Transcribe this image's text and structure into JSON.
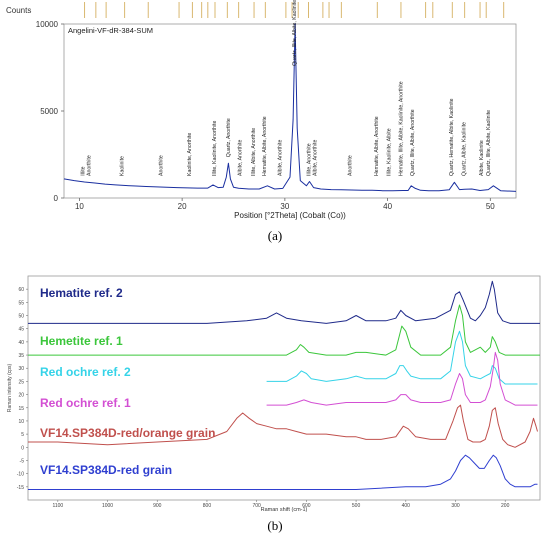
{
  "chart_data": [
    {
      "type": "line",
      "panel_label": "(a)",
      "title": "",
      "xlabel": "Position [°2Theta] (Cobalt (Co))",
      "ylabel": "Counts",
      "xlim": [
        8.5,
        52.5
      ],
      "ylim": [
        0,
        10000
      ],
      "xticks": [
        10,
        20,
        30,
        40,
        50
      ],
      "yticks": [
        0,
        5000,
        10000
      ],
      "series": [
        {
          "name": "Angelini-VF-dR-384-SUM",
          "color": "#1a2fa0",
          "x": [
            8.5,
            9.5,
            10.5,
            11.5,
            12.5,
            13.5,
            14.5,
            15.5,
            16.5,
            17.5,
            18.5,
            19.5,
            20.5,
            21.5,
            22.5,
            23.0,
            23.5,
            24.0,
            24.3,
            24.5,
            24.7,
            25.0,
            25.5,
            26.5,
            27.5,
            28.3,
            29.0,
            29.8,
            30.5,
            30.8,
            31.0,
            31.2,
            31.5,
            31.8,
            32.1,
            32.4,
            32.8,
            33.5,
            34.5,
            35.5,
            36.5,
            37.5,
            38.5,
            39.5,
            40.5,
            41.5,
            42.0,
            42.3,
            42.7,
            43.2,
            44.0,
            45.0,
            46.0,
            46.5,
            47.0,
            47.5,
            48.2,
            49.0,
            49.8,
            50.3,
            51.0,
            52.5
          ],
          "y": [
            1100,
            1000,
            920,
            860,
            800,
            750,
            720,
            690,
            660,
            640,
            620,
            600,
            580,
            570,
            570,
            750,
            600,
            620,
            1200,
            2000,
            1100,
            620,
            560,
            520,
            520,
            700,
            520,
            550,
            1200,
            4500,
            10000,
            4000,
            1000,
            850,
            700,
            950,
            600,
            520,
            480,
            470,
            460,
            450,
            440,
            420,
            420,
            430,
            430,
            700,
            550,
            440,
            420,
            420,
            470,
            900,
            480,
            500,
            520,
            430,
            480,
            700,
            420,
            380
          ]
        }
      ],
      "phase_ticks": [
        10.5,
        11.6,
        12.6,
        14.4,
        16.7,
        19.7,
        21.0,
        21.9,
        22.5,
        23.2,
        24.4,
        25.5,
        27.0,
        28.1,
        30.1,
        30.7,
        31.3,
        32.3,
        33.7,
        34.3,
        35.5,
        39.0,
        41.3,
        43.7,
        44.4,
        46.3,
        47.5,
        49.0,
        49.6,
        51.3
      ],
      "peak_labels": [
        {
          "x": 10.3,
          "text": "Illite"
        },
        {
          "x": 10.9,
          "text": "Anorthite"
        },
        {
          "x": 14.1,
          "text": "Kaolinite"
        },
        {
          "x": 17.9,
          "text": "Anorthite"
        },
        {
          "x": 20.7,
          "text": "Kaolinite, Anorthite"
        },
        {
          "x": 23.1,
          "text": "Illite, Kaolinite, Anorthite"
        },
        {
          "x": 24.5,
          "text": "Quartz, Anorthite"
        },
        {
          "x": 25.6,
          "text": "Albite, Anorthite"
        },
        {
          "x": 26.9,
          "text": "Illite, Albite, Anorthite"
        },
        {
          "x": 28.0,
          "text": "Hematite, Albite, Anorthite"
        },
        {
          "x": 29.5,
          "text": "Albite, Anorthite"
        },
        {
          "x": 30.9,
          "text": "Quartz, Illite, Albite, Kaolinite"
        },
        {
          "x": 32.3,
          "text": "Illite, Anorthite"
        },
        {
          "x": 32.9,
          "text": "Albite, Anorthite"
        },
        {
          "x": 36.3,
          "text": "Anorthite"
        },
        {
          "x": 38.9,
          "text": "Hematite, Albite, Anorthite"
        },
        {
          "x": 40.1,
          "text": "Illite, Kaolinite, Albite"
        },
        {
          "x": 41.3,
          "text": "Hematite, Illite, Albite, Kaolinite, Anorthite"
        },
        {
          "x": 42.4,
          "text": "Quartz, Illite, Albite, Anorthite"
        },
        {
          "x": 46.2,
          "text": "Quartz, Hematite, Albite, Kaolinite"
        },
        {
          "x": 47.4,
          "text": "Quartz, Albite, Kaolinite"
        },
        {
          "x": 49.1,
          "text": "Albite, Kaolinite"
        },
        {
          "x": 49.8,
          "text": "Quartz, Illite, Albite, Kaolinite"
        }
      ]
    },
    {
      "type": "line",
      "panel_label": "(b)",
      "title": "",
      "xlabel": "Raman shift (cm-1)",
      "ylabel": "Raman intensity (cps)",
      "xlim": [
        1160,
        130
      ],
      "ylim": [
        -20,
        65
      ],
      "xticks": [
        1100,
        1000,
        900,
        800,
        700,
        600,
        500,
        400,
        300,
        200
      ],
      "yticks": [
        -15,
        -10,
        -5,
        0,
        5,
        10,
        15,
        20,
        25,
        30,
        35,
        40,
        45,
        50,
        55,
        60
      ],
      "series": [
        {
          "name": "Hematite ref. 2",
          "color": "#1f2a8a",
          "x": [
            1160,
            1100,
            1000,
            900,
            800,
            720,
            680,
            660,
            640,
            610,
            560,
            520,
            500,
            480,
            440,
            420,
            410,
            400,
            380,
            340,
            310,
            300,
            292,
            285,
            270,
            260,
            250,
            240,
            232,
            226,
            222,
            215,
            205,
            190,
            170,
            150,
            130
          ],
          "y": [
            47,
            47,
            47,
            47,
            47,
            48,
            49,
            51,
            49,
            48,
            47,
            48,
            50,
            48,
            48,
            49,
            52,
            50,
            48,
            49,
            52,
            58,
            59,
            56,
            49,
            48,
            50,
            53,
            58,
            63,
            60,
            51,
            48,
            47,
            47,
            47,
            47
          ]
        },
        {
          "name": "Hemetite ref. 1",
          "color": "#3bc63b",
          "x": [
            1160,
            1000,
            800,
            700,
            640,
            620,
            612,
            605,
            595,
            560,
            520,
            500,
            480,
            440,
            420,
            412,
            408,
            400,
            390,
            370,
            330,
            310,
            300,
            292,
            286,
            280,
            270,
            250,
            240,
            230,
            226,
            220,
            212,
            200,
            180,
            150,
            130
          ],
          "y": [
            35,
            35,
            35,
            35,
            35,
            37,
            39,
            38,
            36,
            35,
            35,
            36,
            36,
            35,
            37,
            43,
            46,
            44,
            38,
            35,
            35,
            38,
            48,
            54,
            50,
            40,
            36,
            38,
            36,
            38,
            42,
            40,
            36,
            35,
            35,
            35,
            35
          ]
        },
        {
          "name": "Red ochre ref. 2",
          "color": "#35d3e8",
          "x": [
            680,
            640,
            620,
            610,
            600,
            590,
            560,
            520,
            500,
            480,
            440,
            420,
            412,
            405,
            398,
            390,
            370,
            330,
            310,
            300,
            292,
            286,
            280,
            270,
            250,
            240,
            230,
            226,
            220,
            212,
            200,
            180,
            150,
            135
          ],
          "y": [
            25,
            25,
            27,
            29,
            28,
            26,
            25,
            26,
            27,
            26,
            26,
            28,
            31,
            31,
            29,
            27,
            26,
            26,
            29,
            40,
            44,
            40,
            31,
            27,
            26,
            27,
            28,
            31,
            30,
            26,
            24,
            24,
            24,
            24
          ]
        },
        {
          "name": "Red ochre ref. 1",
          "color": "#d34fd3",
          "x": [
            680,
            640,
            620,
            605,
            590,
            560,
            520,
            500,
            480,
            440,
            420,
            410,
            400,
            390,
            370,
            330,
            310,
            300,
            292,
            286,
            280,
            270,
            250,
            240,
            230,
            224,
            220,
            215,
            210,
            200,
            180,
            150,
            135
          ],
          "y": [
            16,
            16,
            17,
            18,
            17,
            16,
            17,
            17,
            17,
            17,
            18,
            20,
            20,
            18,
            17,
            17,
            18,
            24,
            28,
            26,
            20,
            17,
            17,
            18,
            23,
            30,
            36,
            33,
            24,
            18,
            16,
            16,
            16
          ]
        },
        {
          "name": "VF14.SP384D-red/orange grain",
          "color": "#c0504d",
          "x": [
            1160,
            1100,
            1000,
            900,
            800,
            760,
            740,
            728,
            715,
            700,
            680,
            660,
            640,
            620,
            600,
            580,
            560,
            520,
            500,
            480,
            450,
            420,
            405,
            395,
            380,
            350,
            320,
            305,
            296,
            290,
            284,
            275,
            265,
            250,
            240,
            232,
            226,
            220,
            214,
            205,
            195,
            180,
            160,
            150,
            143,
            138,
            135
          ],
          "y": [
            2,
            2,
            1,
            2,
            3,
            6,
            11,
            13,
            11,
            9,
            8,
            7,
            7,
            6,
            5,
            5,
            5,
            4,
            4,
            3,
            3,
            4,
            8,
            7,
            4,
            3,
            3,
            10,
            15,
            16,
            10,
            3,
            2,
            2,
            3,
            8,
            14,
            15,
            9,
            3,
            1,
            0,
            2,
            6,
            11,
            8,
            6
          ]
        },
        {
          "name": "VF14.SP384D-red grain",
          "color": "#2f3fd0",
          "x": [
            1160,
            1100,
            1000,
            900,
            800,
            700,
            600,
            500,
            400,
            360,
            330,
            310,
            300,
            290,
            280,
            272,
            262,
            252,
            242,
            232,
            224,
            218,
            210,
            200,
            190,
            180,
            165,
            150,
            140,
            135
          ],
          "y": [
            -16,
            -16,
            -16,
            -16,
            -16,
            -16,
            -16,
            -16,
            -15,
            -15,
            -14,
            -12,
            -9,
            -5,
            -3,
            -4,
            -6,
            -8,
            -8,
            -5,
            -3,
            -4,
            -7,
            -12,
            -14,
            -15,
            -15,
            -15,
            -14,
            -14
          ]
        }
      ]
    }
  ]
}
